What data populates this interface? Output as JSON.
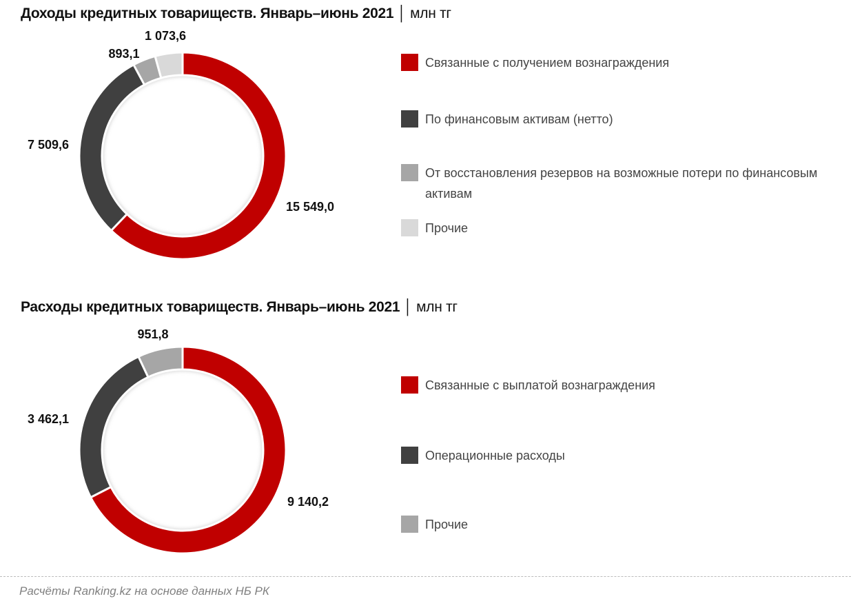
{
  "chart_data": [
    {
      "type": "pie",
      "donut": true,
      "title": "Доходы кредитных товариществ. Январь–июнь 2021",
      "unit": "млн тг",
      "categories": [
        "Связанные с получением вознаграждения",
        "По финансовым активам (нетто)",
        "От восстановления резервов на возможные потери по финансовым активам",
        "Прочие"
      ],
      "values": [
        15549.0,
        7509.6,
        893.1,
        1073.6
      ],
      "labels": [
        "15 549,0",
        "7 509,6",
        "893,1",
        "1 073,6"
      ],
      "colors": [
        "#c00000",
        "#404040",
        "#a6a6a6",
        "#d9d9d9"
      ],
      "legend": "right"
    },
    {
      "type": "pie",
      "donut": true,
      "title": "Расходы кредитных товариществ. Январь–июнь 2021",
      "unit": "млн тг",
      "categories": [
        "Связанные с выплатой вознаграждения",
        "Операционные расходы",
        "Прочие"
      ],
      "values": [
        9140.2,
        3462.1,
        951.8
      ],
      "labels": [
        "9 140,2",
        "3 462,1",
        "951,8"
      ],
      "colors": [
        "#c00000",
        "#404040",
        "#a6a6a6"
      ],
      "legend": "right"
    }
  ],
  "source": "Расчёты Ranking.kz на основе данных НБ РК"
}
